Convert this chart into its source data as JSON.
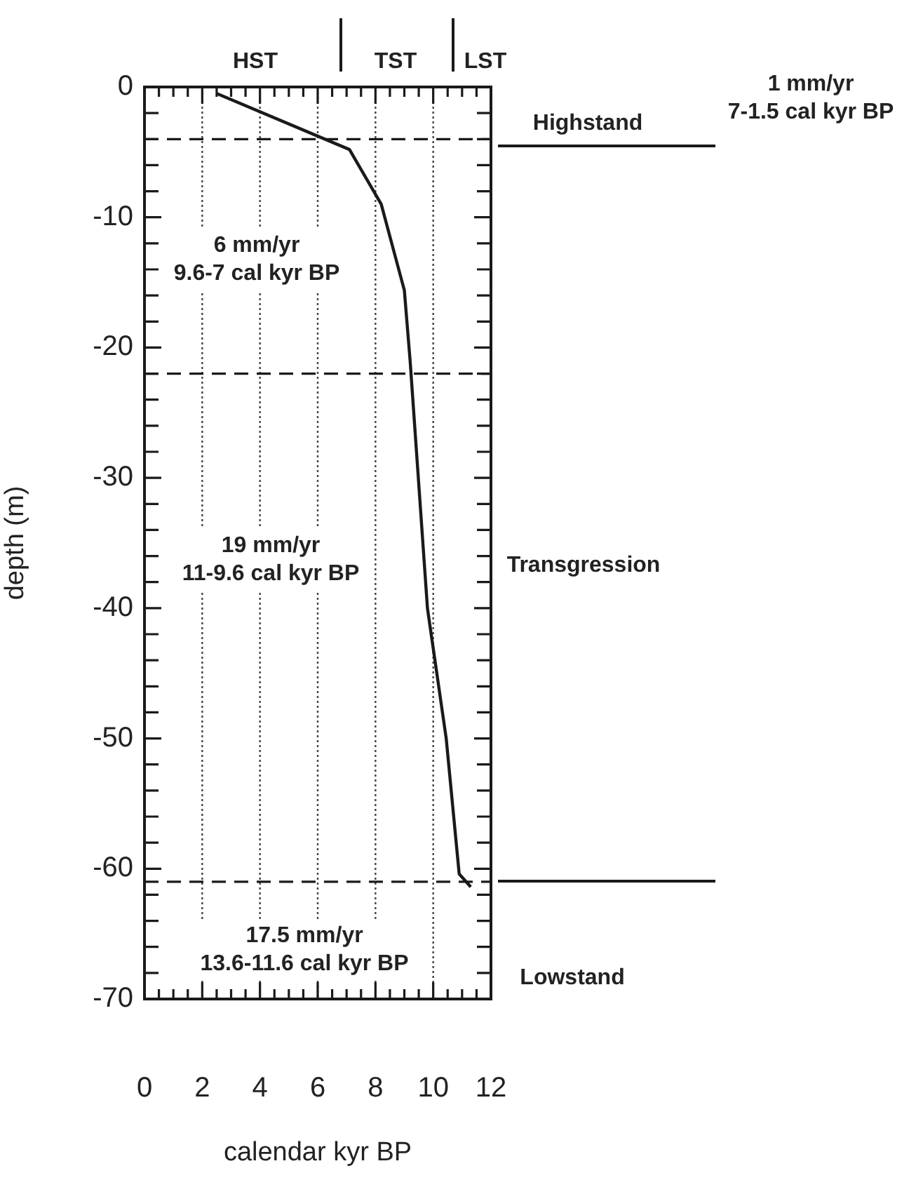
{
  "chart_data": {
    "type": "line",
    "xlabel": "calendar kyr BP",
    "ylabel": "depth (m)",
    "x": [
      2.5,
      7.1,
      8.2,
      9.0,
      9.2,
      9.8,
      10.45,
      10.9,
      11.3
    ],
    "series": [
      {
        "color": "#1a1a1a",
        "values": [
          -0.5,
          -4.8,
          -9,
          -15.6,
          -21,
          -40,
          -50,
          -60.4,
          -61.4
        ]
      }
    ],
    "xlim": [
      0,
      12
    ],
    "xticks": [
      0,
      {
        "value": 0.5,
        "label": null
      },
      {
        "value": 1,
        "label": null
      },
      {
        "value": 1.5,
        "label": null
      },
      2,
      {
        "value": 2.5,
        "label": null
      },
      {
        "value": 3,
        "label": null
      },
      {
        "value": 3.5,
        "label": null
      },
      4,
      {
        "value": 4.5,
        "label": null
      },
      {
        "value": 5,
        "label": null
      },
      {
        "value": 5.5,
        "label": null
      },
      6,
      {
        "value": 6.5,
        "label": null
      },
      {
        "value": 7,
        "label": null
      },
      {
        "value": 7.5,
        "label": null
      },
      8,
      {
        "value": 8.5,
        "label": null
      },
      {
        "value": 9,
        "label": null
      },
      {
        "value": 9.5,
        "label": null
      },
      10,
      {
        "value": 10.5,
        "label": null
      },
      {
        "value": 11,
        "label": null
      },
      {
        "value": 11.5,
        "label": null
      },
      12
    ],
    "ylim": [
      -70,
      0
    ],
    "yticks": [
      0,
      {
        "value": -2,
        "label": null
      },
      {
        "value": -4,
        "label": null
      },
      {
        "value": -6,
        "label": null
      },
      {
        "value": -8,
        "label": null
      },
      -10,
      {
        "value": -12,
        "label": null
      },
      {
        "value": -14,
        "label": null
      },
      {
        "value": -16,
        "label": null
      },
      {
        "value": -18,
        "label": null
      },
      -20,
      {
        "value": -22,
        "label": null
      },
      {
        "value": -24,
        "label": null
      },
      {
        "value": -26,
        "label": null
      },
      {
        "value": -28,
        "label": null
      },
      -30,
      {
        "value": -32,
        "label": null
      },
      {
        "value": -34,
        "label": null
      },
      {
        "value": -36,
        "label": null
      },
      {
        "value": -38,
        "label": null
      },
      -40,
      {
        "value": -42,
        "label": null
      },
      {
        "value": -44,
        "label": null
      },
      {
        "value": -46,
        "label": null
      },
      {
        "value": -48,
        "label": null
      },
      -50,
      {
        "value": -52,
        "label": null
      },
      {
        "value": -54,
        "label": null
      },
      {
        "value": -56,
        "label": null
      },
      {
        "value": -58,
        "label": null
      },
      -60,
      {
        "value": -62,
        "label": null
      },
      {
        "value": -64,
        "label": null
      },
      {
        "value": -66,
        "label": null
      },
      {
        "value": -68,
        "label": null
      },
      -70
    ],
    "grid": "x",
    "marker": "none",
    "line_style": "solid",
    "ref_lines": [
      {
        "axis": "y",
        "value": -4,
        "line_style": "dashed"
      },
      {
        "axis": "y",
        "value": -22,
        "line_style": "dashed"
      },
      {
        "axis": "y",
        "value": -61,
        "line_style": "dashed"
      }
    ],
    "annotations": [
      "HST",
      "TST",
      "LST",
      "6 mm/yr\n9.6-7 cal kyr BP",
      "19 mm/yr\n11-9.6 cal kyr BP",
      "17.5 mm/yr\n13.6-11.6 cal kyr BP",
      "1 mm/yr\n7-1.5 cal kyr BP",
      "Highstand",
      "Transgression",
      "Lowstand"
    ]
  }
}
